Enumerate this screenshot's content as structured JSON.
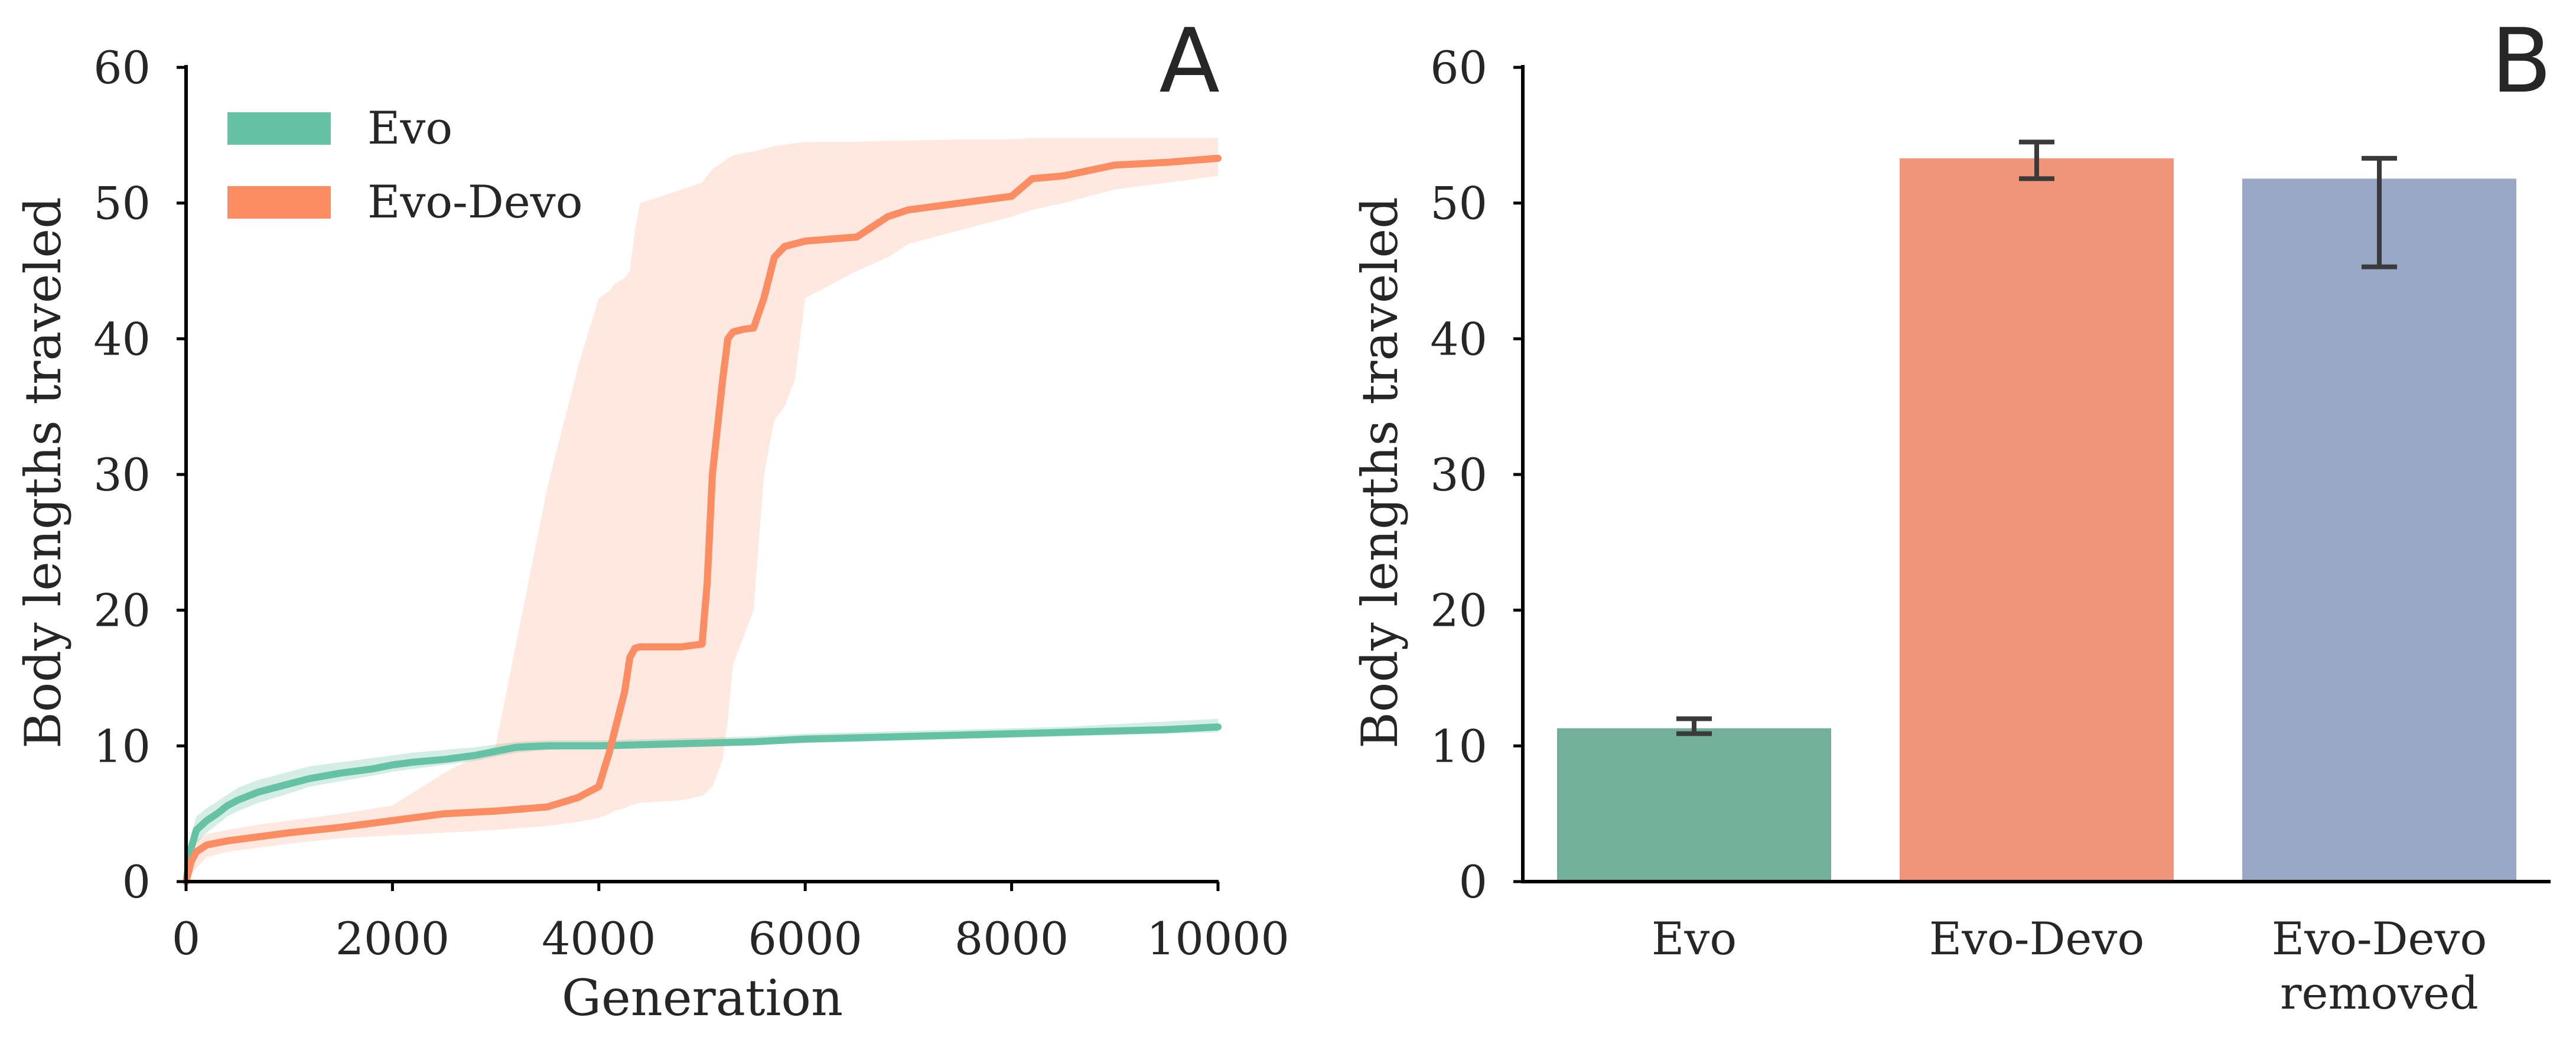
{
  "chart_data": [
    {
      "type": "line",
      "panel": "A",
      "xlabel": "Generation",
      "ylabel": "Body lengths traveled",
      "xlim": [
        0,
        10000
      ],
      "ylim": [
        0,
        60
      ],
      "xticks": [
        "0",
        "2000",
        "4000",
        "6000",
        "8000",
        "10000"
      ],
      "yticks": [
        "0",
        "10",
        "20",
        "30",
        "40",
        "50",
        "60"
      ],
      "grid": false,
      "legend_position": "top-left",
      "series": [
        {
          "name": "Evo",
          "color": "#66c2a5",
          "x": [
            0,
            50,
            100,
            200,
            300,
            400,
            500,
            700,
            1000,
            1200,
            1500,
            1800,
            2000,
            2200,
            2500,
            2800,
            3000,
            3200,
            3500,
            4000,
            4500,
            5000,
            5500,
            6000,
            6500,
            7000,
            7500,
            8000,
            8500,
            9000,
            9500,
            10000
          ],
          "y": [
            0,
            2.5,
            3.8,
            4.5,
            5.0,
            5.6,
            6.0,
            6.6,
            7.2,
            7.6,
            8.0,
            8.3,
            8.6,
            8.8,
            9.0,
            9.3,
            9.6,
            9.9,
            10.0,
            10.0,
            10.1,
            10.2,
            10.3,
            10.5,
            10.6,
            10.7,
            10.8,
            10.9,
            11.0,
            11.1,
            11.2,
            11.4
          ],
          "lower": [
            0,
            1.5,
            2.8,
            3.6,
            4.2,
            4.8,
            5.2,
            5.8,
            6.5,
            7.0,
            7.4,
            7.8,
            8.1,
            8.3,
            8.6,
            8.9,
            9.2,
            9.5,
            9.7,
            9.8,
            9.9,
            10.0,
            10.1,
            10.2,
            10.3,
            10.4,
            10.5,
            10.6,
            10.7,
            10.8,
            10.9,
            11.0
          ],
          "upper": [
            0,
            3.5,
            4.8,
            5.4,
            5.9,
            6.4,
            6.9,
            7.5,
            8.1,
            8.5,
            8.8,
            9.1,
            9.3,
            9.5,
            9.7,
            9.9,
            10.1,
            10.3,
            10.4,
            10.4,
            10.5,
            10.6,
            10.7,
            10.9,
            11.0,
            11.1,
            11.2,
            11.3,
            11.4,
            11.6,
            11.8,
            12.0
          ]
        },
        {
          "name": "Evo-Devo",
          "color": "#fc8d62",
          "x": [
            0,
            50,
            100,
            200,
            400,
            700,
            1000,
            1500,
            2000,
            2500,
            3000,
            3500,
            3800,
            4000,
            4100,
            4150,
            4250,
            4300,
            4350,
            4400,
            4800,
            5000,
            5050,
            5100,
            5200,
            5250,
            5300,
            5400,
            5500,
            5600,
            5700,
            5800,
            5900,
            6000,
            6500,
            6800,
            7000,
            7500,
            8000,
            8200,
            8500,
            9000,
            9500,
            10000
          ],
          "y": [
            0,
            1.5,
            2.2,
            2.7,
            3.0,
            3.3,
            3.6,
            4.0,
            4.5,
            5.0,
            5.2,
            5.5,
            6.2,
            7.0,
            9.5,
            11.0,
            14.0,
            16.5,
            17.2,
            17.3,
            17.3,
            17.5,
            22.0,
            30.0,
            37.0,
            40.0,
            40.5,
            40.7,
            40.8,
            43.0,
            46.0,
            46.8,
            47.0,
            47.2,
            47.5,
            49.0,
            49.5,
            50.0,
            50.5,
            51.8,
            52.0,
            52.8,
            53.0,
            53.3
          ],
          "lower": [
            0,
            0.5,
            1.0,
            1.8,
            2.2,
            2.5,
            2.8,
            3.2,
            3.4,
            3.6,
            3.8,
            4.1,
            4.4,
            4.7,
            5.0,
            5.2,
            5.4,
            5.6,
            5.7,
            5.8,
            6.0,
            6.3,
            6.6,
            7.0,
            9.0,
            12.0,
            16.0,
            18.0,
            20.0,
            30.0,
            34.0,
            35.0,
            37.0,
            43.0,
            45.0,
            46.0,
            47.0,
            48.0,
            49.0,
            49.5,
            50.0,
            51.0,
            51.5,
            52.0
          ],
          "upper": [
            0,
            2.5,
            3.0,
            3.5,
            3.8,
            4.2,
            4.5,
            5.0,
            5.6,
            8.0,
            10.0,
            29.0,
            38.0,
            43.0,
            43.5,
            44.0,
            44.5,
            45.0,
            48.0,
            50.0,
            51.0,
            51.5,
            52.0,
            52.5,
            53.0,
            53.3,
            53.5,
            53.7,
            53.8,
            54.0,
            54.2,
            54.3,
            54.4,
            54.5,
            54.5,
            54.6,
            54.6,
            54.7,
            54.7,
            54.8,
            54.8,
            54.8,
            54.8,
            54.8
          ]
        }
      ]
    },
    {
      "type": "bar",
      "panel": "B",
      "ylabel": "Body lengths traveled",
      "ylim": [
        0,
        60
      ],
      "yticks": [
        "0",
        "10",
        "20",
        "30",
        "40",
        "50",
        "60"
      ],
      "grid": false,
      "categories": [
        {
          "lines": [
            "Evo"
          ]
        },
        {
          "lines": [
            "Evo-Devo"
          ]
        },
        {
          "lines": [
            "Evo-Devo",
            "removed"
          ]
        }
      ],
      "values": [
        11.3,
        53.3,
        51.8
      ],
      "error_low": [
        10.9,
        51.8,
        45.3
      ],
      "error_high": [
        12.0,
        54.5,
        53.3
      ],
      "colors": [
        "#73b09a",
        "#f0957a",
        "#98a7c6"
      ],
      "error_color": "#3a3a3a"
    }
  ],
  "labels": {
    "panel_a_letter": "A",
    "panel_b_letter": "B"
  }
}
